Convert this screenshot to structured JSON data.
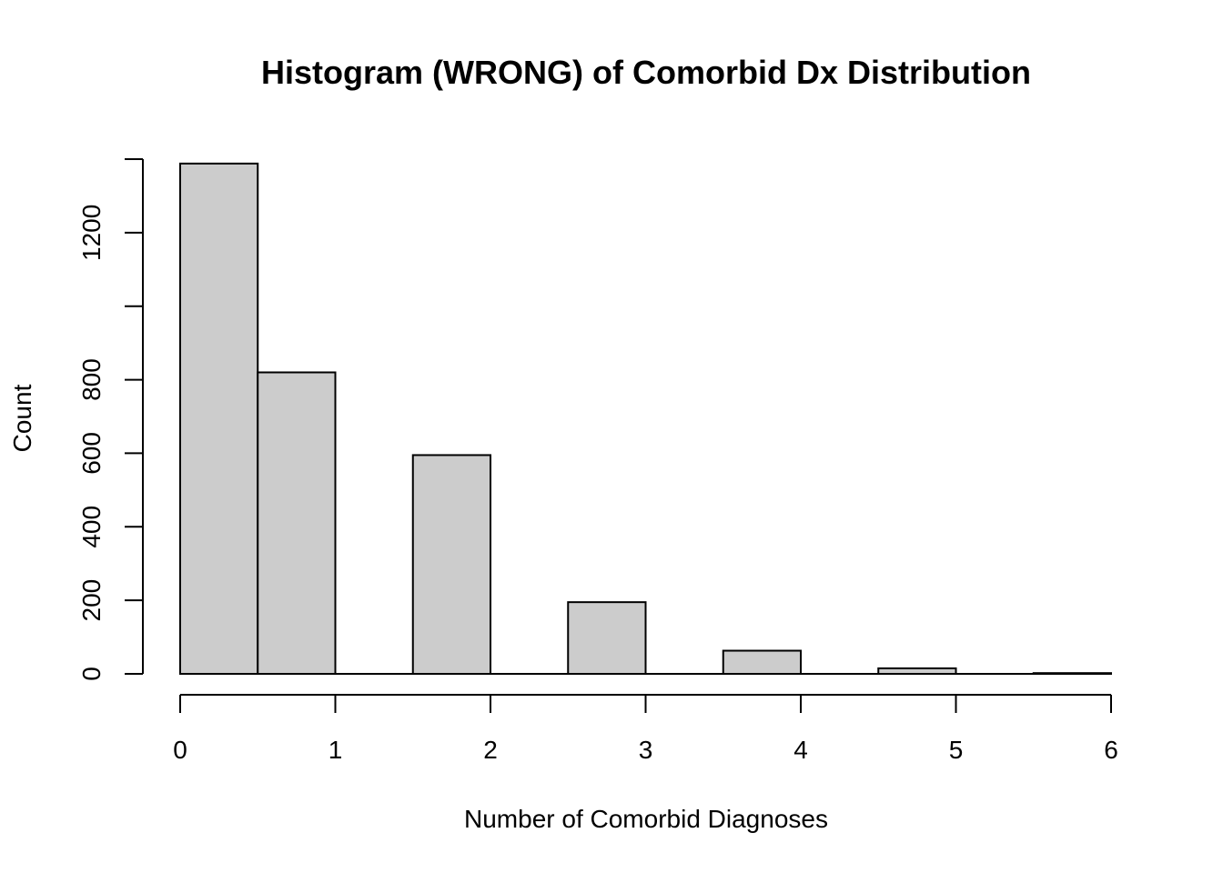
{
  "chart_data": {
    "type": "bar",
    "title": "Histogram (WRONG) of Comorbid Dx Distribution",
    "xlabel": "Number of Comorbid Diagnoses",
    "ylabel": "Count",
    "xlim": [
      0,
      6
    ],
    "ylim": [
      0,
      1400
    ],
    "x_ticks": [
      "0",
      "1",
      "2",
      "3",
      "4",
      "5",
      "6"
    ],
    "y_ticks": [
      "0",
      "200",
      "400",
      "600",
      "800",
      "",
      "1200",
      ""
    ],
    "y_tick_values": [
      0,
      200,
      400,
      600,
      800,
      1000,
      1200,
      1400
    ],
    "bins": [
      {
        "start": 0.0,
        "end": 0.5,
        "count": 1388
      },
      {
        "start": 0.5,
        "end": 1.0,
        "count": 820
      },
      {
        "start": 1.0,
        "end": 1.5,
        "count": 0
      },
      {
        "start": 1.5,
        "end": 2.0,
        "count": 595
      },
      {
        "start": 2.0,
        "end": 2.5,
        "count": 0
      },
      {
        "start": 2.5,
        "end": 3.0,
        "count": 195
      },
      {
        "start": 3.0,
        "end": 3.5,
        "count": 0
      },
      {
        "start": 3.5,
        "end": 4.0,
        "count": 63
      },
      {
        "start": 4.0,
        "end": 4.5,
        "count": 0
      },
      {
        "start": 4.5,
        "end": 5.0,
        "count": 15
      },
      {
        "start": 5.0,
        "end": 5.5,
        "count": 0
      },
      {
        "start": 5.5,
        "end": 6.0,
        "count": 2
      }
    ],
    "bar_fill": "#cccccc",
    "bar_stroke": "#000000",
    "grid": false,
    "legend": "none"
  }
}
